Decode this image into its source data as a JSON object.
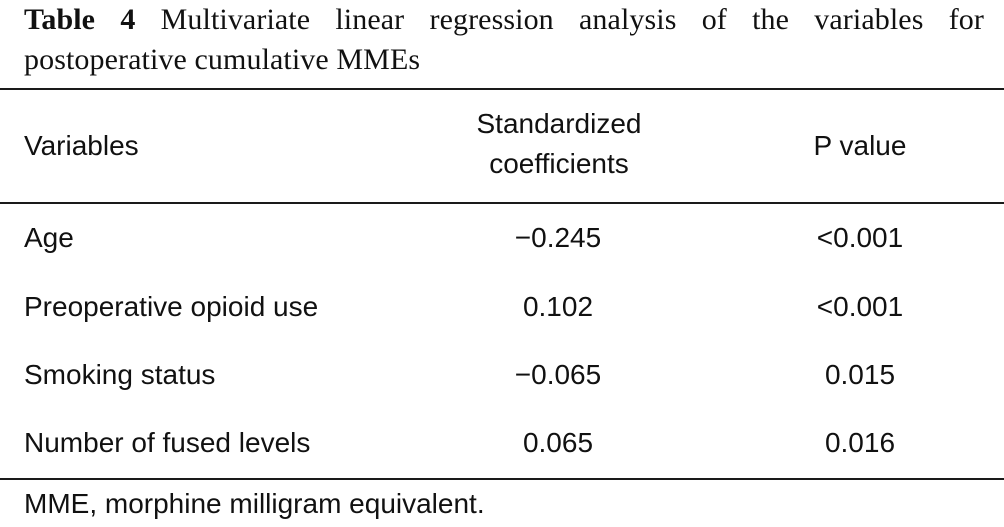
{
  "caption": {
    "label": "Table 4",
    "text": "Multivariate linear regression analysis of the variables for postoperative cumulative MMEs"
  },
  "table": {
    "headers": {
      "variables": "Variables",
      "coef_line1": "Standardized",
      "coef_line2": "coefficients",
      "p_value": "P value"
    },
    "rows": [
      {
        "variable": "Age",
        "coefficient": "−0.245",
        "p_value": "<0.001"
      },
      {
        "variable": "Preoperative opioid use",
        "coefficient": "0.102",
        "p_value": "<0.001"
      },
      {
        "variable": "Smoking status",
        "coefficient": "−0.065",
        "p_value": "0.015"
      },
      {
        "variable": "Number of fused levels",
        "coefficient": "0.065",
        "p_value": "0.016"
      }
    ]
  },
  "footnote": "MME, morphine milligram equivalent."
}
